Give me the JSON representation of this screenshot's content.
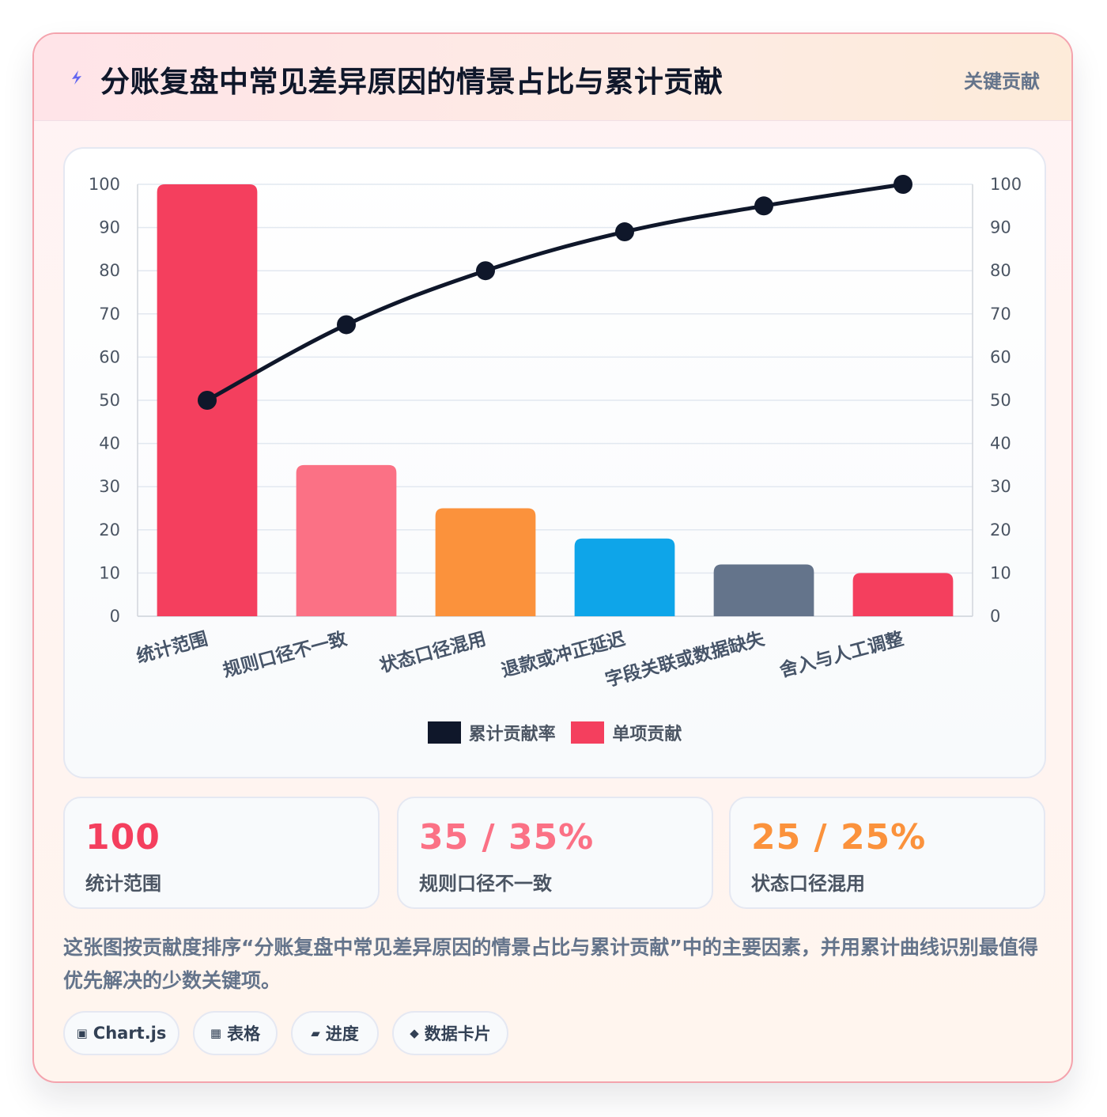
{
  "header": {
    "title": "分账复盘中常见差异原因的情景占比与累计贡献",
    "badge": "关键贡献",
    "bolt_icon": "lightning-icon"
  },
  "chart_data": {
    "type": "bar",
    "categories": [
      "统计范围",
      "规则口径不一致",
      "状态口径混用",
      "退款或冲正延迟",
      "字段关联或数据缺失",
      "舍入与人工调整"
    ],
    "series": [
      {
        "name": "单项贡献",
        "type": "bar",
        "values": [
          100,
          35,
          25,
          18,
          12,
          10
        ],
        "colors": [
          "#f43f5e",
          "#fb7185",
          "#fb923c",
          "#0ea5e9",
          "#64748b",
          "#f43f5e"
        ]
      },
      {
        "name": "累计贡献率",
        "type": "line",
        "values": [
          50,
          67.5,
          80,
          89,
          95,
          100
        ],
        "color": "#0f172a"
      }
    ],
    "y_ticks": [
      "0",
      "10",
      "20",
      "30",
      "40",
      "50",
      "60",
      "70",
      "80",
      "90",
      "100"
    ],
    "y2_ticks": [
      "0",
      "10",
      "20",
      "30",
      "40",
      "50",
      "60",
      "70",
      "80",
      "90",
      "100"
    ],
    "ylim": [
      0,
      100
    ],
    "y2lim": [
      0,
      100
    ],
    "grid": true,
    "legend": [
      "累计贡献率",
      "单项贡献"
    ],
    "legend_position": "bottom"
  },
  "stats": [
    {
      "value": "100",
      "label": "统计范围",
      "color": "#f43f5e"
    },
    {
      "value": "35 / 35%",
      "label": "规则口径不一致",
      "color": "#fb7185"
    },
    {
      "value": "25 / 25%",
      "label": "状态口径混用",
      "color": "#fb923c"
    }
  ],
  "description": "这张图按贡献度排序“分账复盘中常见差异原因的情景占比与累计贡献”中的主要因素，并用累计曲线识别最值得优先解决的少数关键项。",
  "tags": [
    {
      "icon": "▣",
      "icon_name": "chart-icon",
      "label": "Chart.js"
    },
    {
      "icon": "▦",
      "icon_name": "table-icon",
      "label": "表格"
    },
    {
      "icon": "▰",
      "icon_name": "progress-icon",
      "label": "进度"
    },
    {
      "icon": "◆",
      "icon_name": "card-icon",
      "label": "数据卡片"
    }
  ]
}
